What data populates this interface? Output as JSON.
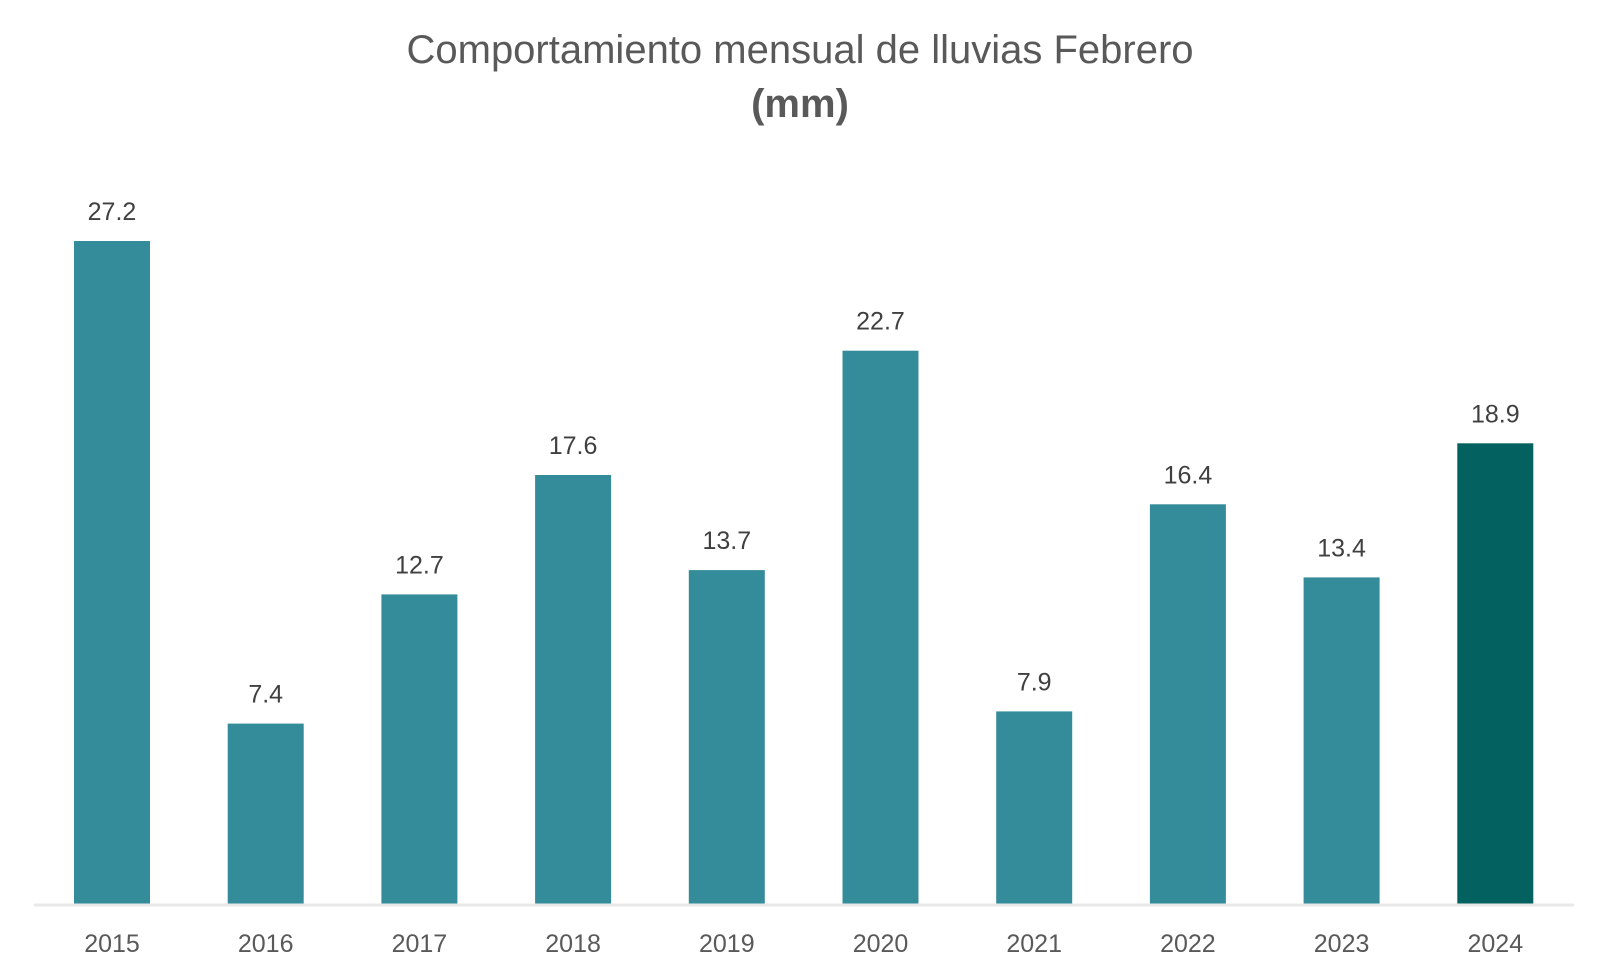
{
  "chart_data": {
    "type": "bar",
    "title": "Comportamiento mensual de lluvias Febrero",
    "subtitle": "(mm)",
    "categories": [
      "2015",
      "2016",
      "2017",
      "2018",
      "2019",
      "2020",
      "2021",
      "2022",
      "2023",
      "2024"
    ],
    "values": [
      27.2,
      7.4,
      12.7,
      17.6,
      13.7,
      22.7,
      7.9,
      16.4,
      13.4,
      18.9
    ],
    "colors": {
      "bar": "#348c9a",
      "highlight": "#03625f",
      "axis": "#e8e8e8"
    },
    "highlight_index": 9,
    "ylim": [
      0,
      27.2
    ],
    "grid": false,
    "legend": "none"
  }
}
